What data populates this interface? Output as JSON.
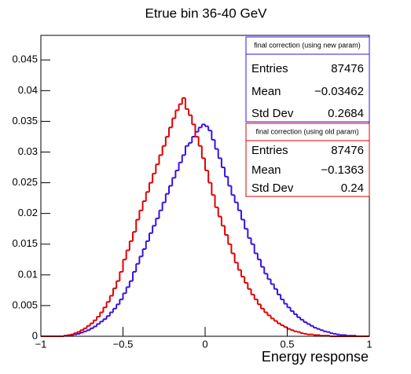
{
  "chart_data": {
    "type": "histogram",
    "title": "Etrue bin 36-40 GeV",
    "x_label": "Energy response",
    "xlim": [
      -1,
      1
    ],
    "ylim": [
      0,
      0.049
    ],
    "xticks": [
      {
        "value": -1,
        "label": "−1"
      },
      {
        "value": -0.5,
        "label": "−0.5"
      },
      0,
      0.5,
      1
    ],
    "yticks": [
      0,
      0.005,
      0.01,
      0.015,
      0.02,
      0.025,
      0.03,
      0.035,
      0.04,
      0.045
    ],
    "bins": [
      -1,
      -0.98,
      -0.96,
      -0.94,
      -0.92,
      -0.9,
      -0.88,
      -0.86,
      -0.84,
      -0.82,
      -0.8,
      -0.78,
      -0.76,
      -0.74,
      -0.72,
      -0.7,
      -0.68,
      -0.66,
      -0.64,
      -0.62,
      -0.6,
      -0.58,
      -0.56,
      -0.54,
      -0.52,
      -0.5,
      -0.48,
      -0.46,
      -0.44,
      -0.42,
      -0.4,
      -0.38,
      -0.36,
      -0.34,
      -0.32,
      -0.3,
      -0.28,
      -0.26,
      -0.24,
      -0.22,
      -0.2,
      -0.18,
      -0.16,
      -0.14,
      -0.12,
      -0.1,
      -0.08,
      -0.06,
      -0.04,
      -0.02,
      0,
      0.02,
      0.04,
      0.06,
      0.08,
      0.1,
      0.12,
      0.14,
      0.16,
      0.18,
      0.2,
      0.22,
      0.24,
      0.26,
      0.28,
      0.3,
      0.32,
      0.34,
      0.36,
      0.38,
      0.4,
      0.42,
      0.44,
      0.46,
      0.48,
      0.5,
      0.52,
      0.54,
      0.56,
      0.58,
      0.6,
      0.62,
      0.64,
      0.66,
      0.68,
      0.7,
      0.72,
      0.74,
      0.76,
      0.78,
      0.8,
      0.82,
      0.84,
      0.86,
      0.88,
      0.9,
      0.92,
      0.94,
      0.96,
      0.98,
      1
    ],
    "series": [
      {
        "name": "final correction (using new param)",
        "color": "#3a10e0",
        "stats": [
          {
            "label": "Entries",
            "value": "87476"
          },
          {
            "label": "Mean",
            "value": "−0.03462"
          },
          {
            "label": "Std Dev",
            "value": "0.2684"
          }
        ],
        "values": [
          0,
          0,
          0,
          0,
          0,
          0,
          0,
          0.0001,
          0.0001,
          0.0002,
          0.0003,
          0.0004,
          0.0006,
          0.0008,
          0.001,
          0.0013,
          0.0016,
          0.002,
          0.0024,
          0.0028,
          0.0033,
          0.0039,
          0.0045,
          0.0052,
          0.006,
          0.007,
          0.008,
          0.009,
          0.0105,
          0.0118,
          0.013,
          0.0142,
          0.0155,
          0.0168,
          0.018,
          0.0192,
          0.0205,
          0.0218,
          0.0232,
          0.0245,
          0.0258,
          0.027,
          0.0283,
          0.0295,
          0.031,
          0.0315,
          0.0325,
          0.0333,
          0.034,
          0.0345,
          0.0342,
          0.0335,
          0.032,
          0.0305,
          0.029,
          0.0275,
          0.026,
          0.0245,
          0.023,
          0.0218,
          0.0205,
          0.019,
          0.0175,
          0.016,
          0.015,
          0.0135,
          0.0125,
          0.0113,
          0.0102,
          0.0093,
          0.0085,
          0.0077,
          0.0068,
          0.006,
          0.0053,
          0.0047,
          0.0041,
          0.0036,
          0.0031,
          0.0027,
          0.0023,
          0.002,
          0.0017,
          0.0014,
          0.0012,
          0.001,
          0.0008,
          0.0007,
          0.0005,
          0.0004,
          0.0003,
          0.0002,
          0.0002,
          0.0001,
          0.0001,
          0.0001,
          0,
          0,
          0,
          0
        ]
      },
      {
        "name": "final correction (using old param)",
        "color": "#e00000",
        "stats": [
          {
            "label": "Entries",
            "value": "87476"
          },
          {
            "label": "Mean",
            "value": "−0.1363"
          },
          {
            "label": "Std Dev",
            "value": "0.24"
          }
        ],
        "values": [
          0,
          0,
          0,
          0,
          0,
          0,
          0,
          0.0001,
          0.0002,
          0.0003,
          0.0005,
          0.0007,
          0.001,
          0.0013,
          0.0017,
          0.0021,
          0.0026,
          0.0032,
          0.0039,
          0.0047,
          0.0056,
          0.0066,
          0.0078,
          0.009,
          0.0105,
          0.0125,
          0.014,
          0.0155,
          0.017,
          0.019,
          0.0205,
          0.022,
          0.0235,
          0.025,
          0.0265,
          0.028,
          0.0295,
          0.031,
          0.0325,
          0.034,
          0.0355,
          0.0368,
          0.0378,
          0.0388,
          0.037,
          0.036,
          0.0345,
          0.0325,
          0.031,
          0.029,
          0.027,
          0.025,
          0.023,
          0.021,
          0.0195,
          0.018,
          0.0165,
          0.015,
          0.0135,
          0.012,
          0.0108,
          0.0097,
          0.0087,
          0.0077,
          0.0068,
          0.006,
          0.0052,
          0.0045,
          0.0039,
          0.0034,
          0.0029,
          0.0025,
          0.0021,
          0.0018,
          0.0015,
          0.0012,
          0.001,
          0.0008,
          0.0007,
          0.0005,
          0.0004,
          0.0003,
          0.0003,
          0.0002,
          0.0002,
          0.0001,
          0.0001,
          0.0001,
          0,
          0,
          0,
          0,
          0,
          0,
          0,
          0,
          0,
          0,
          0,
          0
        ]
      }
    ]
  }
}
